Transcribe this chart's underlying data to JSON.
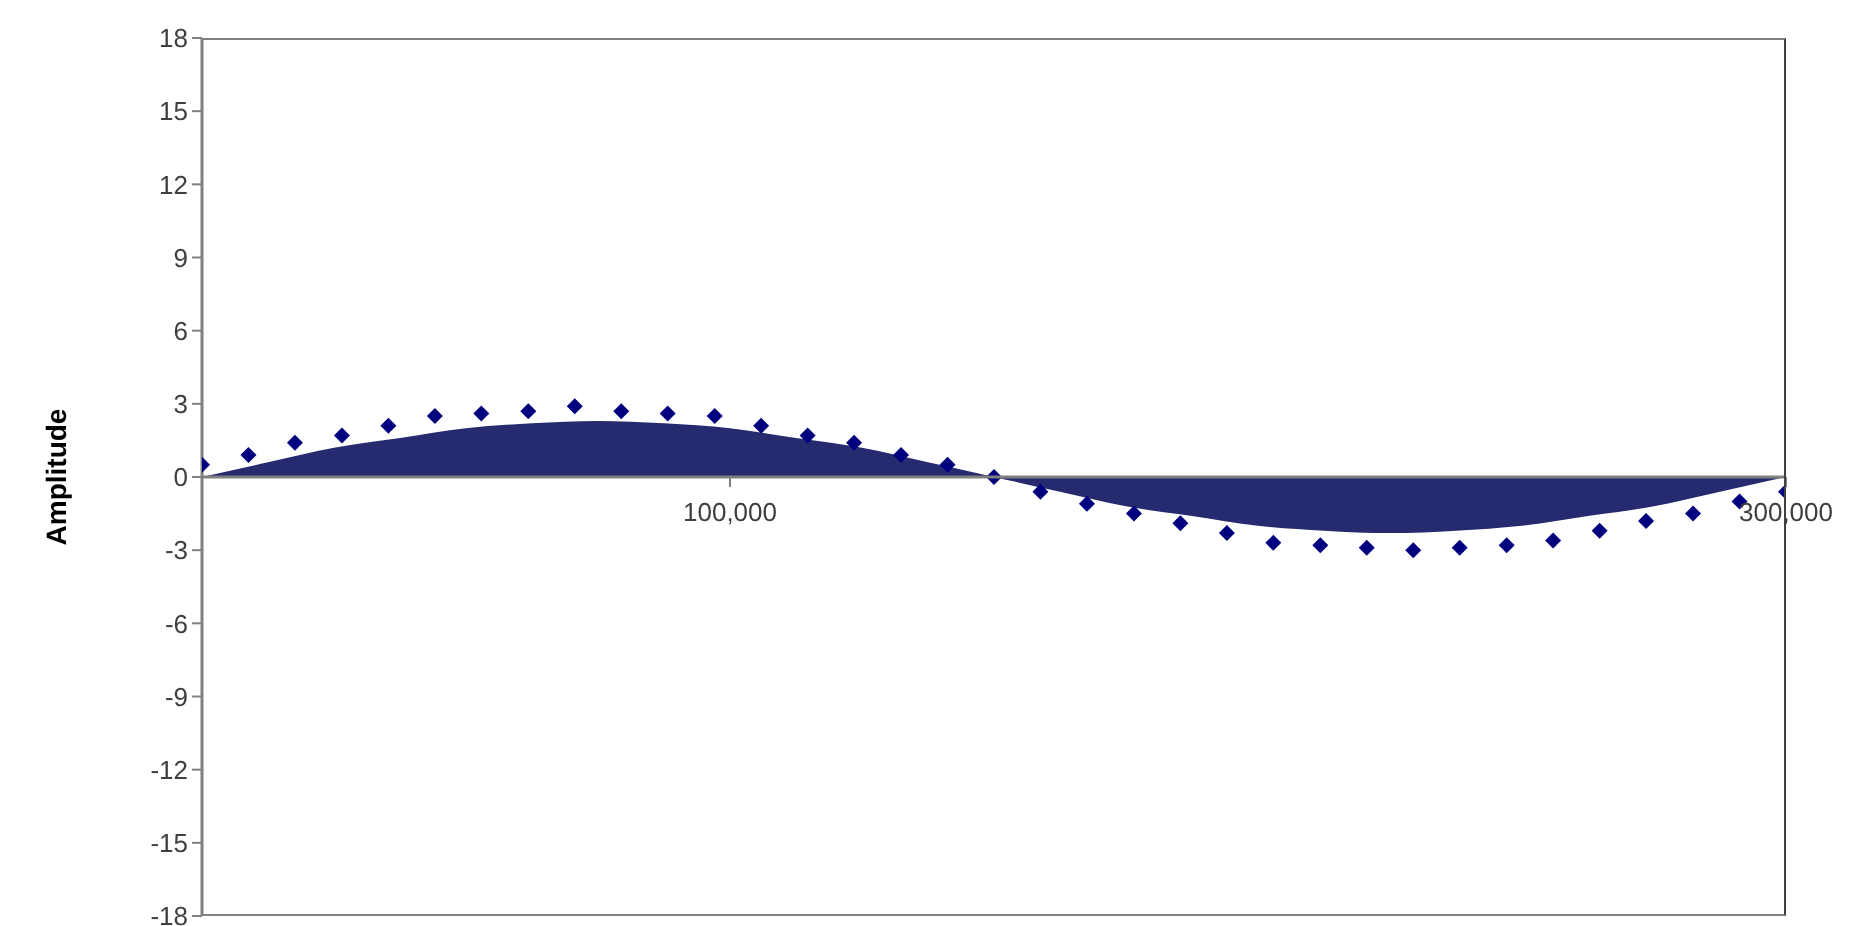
{
  "chart_data": {
    "type": "scatter",
    "ylabel": "Amplitude",
    "xlim": [
      0,
      300000
    ],
    "xticks": [
      {
        "value": 100000,
        "label": "100,000"
      },
      {
        "value": 300000,
        "label": "300,000"
      }
    ],
    "ylim": [
      -18,
      18
    ],
    "yticks": [
      18,
      15,
      12,
      9,
      6,
      3,
      0,
      -3,
      -6,
      -9,
      -12,
      -15,
      -18
    ],
    "grid": false,
    "series": [
      {
        "type": "area",
        "color": "#262a6e",
        "x": [
          0,
          12500,
          25000,
          37500,
          50000,
          62500,
          75000,
          87500,
          100000,
          112500,
          125000,
          137500,
          150000,
          162500,
          175000,
          187500,
          200000,
          212500,
          225000,
          237500,
          250000,
          262500,
          275000,
          287500,
          300000
        ],
        "values": [
          0,
          0.6,
          1.2,
          1.6,
          2.0,
          2.2,
          2.3,
          2.2,
          2.0,
          1.6,
          1.2,
          0.6,
          0,
          -0.6,
          -1.2,
          -1.6,
          -2.0,
          -2.2,
          -2.3,
          -2.2,
          -2.0,
          -1.6,
          -1.2,
          -0.6,
          0
        ]
      },
      {
        "marker": "diamond",
        "color": "#00007f",
        "x": [
          0,
          8800,
          17600,
          26500,
          35300,
          44100,
          52900,
          61800,
          70600,
          79400,
          88200,
          97100,
          105900,
          114700,
          123500,
          132400,
          141200,
          150000,
          158800,
          167600,
          176500,
          185300,
          194100,
          202900,
          211800,
          220600,
          229400,
          238200,
          247100,
          255900,
          264700,
          273500,
          282400,
          291200,
          300000
        ],
        "values": [
          0.5,
          0.9,
          1.4,
          1.7,
          2.1,
          2.5,
          2.6,
          2.7,
          2.9,
          2.7,
          2.6,
          2.5,
          2.1,
          1.7,
          1.4,
          0.9,
          0.5,
          0,
          -0.6,
          -1.1,
          -1.5,
          -1.9,
          -2.3,
          -2.7,
          -2.8,
          -2.9,
          -3.0,
          -2.9,
          -2.8,
          -2.6,
          -2.2,
          -1.8,
          -1.5,
          -1.0,
          -0.6
        ]
      }
    ]
  }
}
